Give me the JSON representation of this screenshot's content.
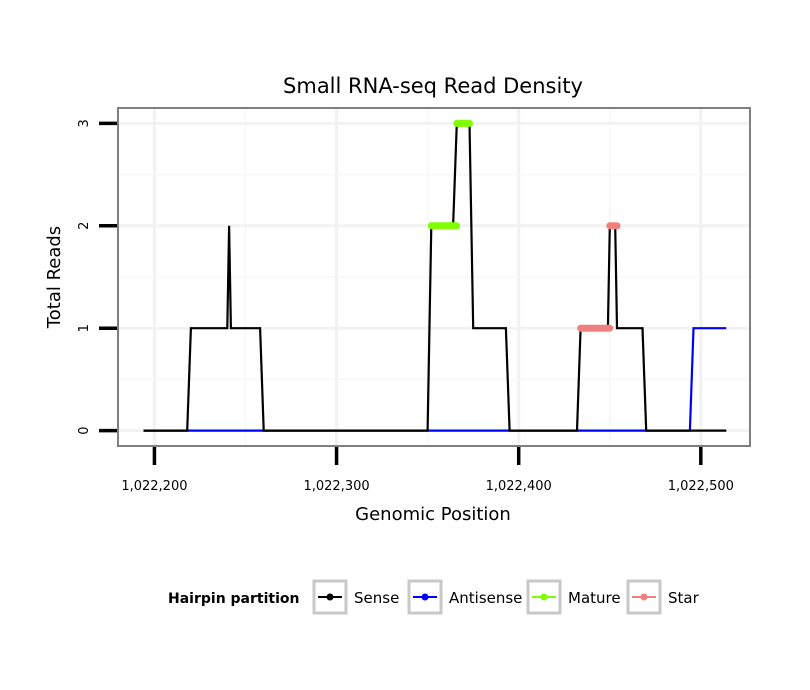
{
  "chart_data": {
    "type": "line",
    "title": "Small RNA-seq Read Density",
    "xlabel": "Genomic Position",
    "ylabel": "Total Reads",
    "xlim": [
      1022180,
      1022527
    ],
    "ylim": [
      -0.15,
      3.15
    ],
    "x_ticks": [
      1022200,
      1022300,
      1022400,
      1022500
    ],
    "x_tick_labels": [
      "1,022,200",
      "1,022,300",
      "1,022,400",
      "1,022,500"
    ],
    "y_ticks": [
      0,
      1,
      2,
      3
    ],
    "y_tick_labels": [
      "0",
      "1",
      "2",
      "3"
    ],
    "grid": true,
    "legend": {
      "title": "Hairpin partition",
      "position": "bottom",
      "entries": [
        "Sense",
        "Antisense",
        "Mature",
        "Star"
      ]
    },
    "series": [
      {
        "name": "Sense",
        "color": "#000000",
        "style": "line",
        "points": [
          [
            1022194,
            0
          ],
          [
            1022218,
            0
          ],
          [
            1022220,
            1
          ],
          [
            1022240,
            1
          ],
          [
            1022241,
            2
          ],
          [
            1022242,
            1
          ],
          [
            1022258,
            1
          ],
          [
            1022260,
            0
          ],
          [
            1022350,
            0
          ],
          [
            1022352,
            2
          ],
          [
            1022364,
            2
          ],
          [
            1022366,
            3
          ],
          [
            1022373,
            3
          ],
          [
            1022375,
            1
          ],
          [
            1022393,
            1
          ],
          [
            1022395,
            0
          ],
          [
            1022432,
            0
          ],
          [
            1022434,
            1
          ],
          [
            1022449,
            1
          ],
          [
            1022450,
            2
          ],
          [
            1022453,
            2
          ],
          [
            1022454,
            1
          ],
          [
            1022468,
            1
          ],
          [
            1022470,
            0
          ],
          [
            1022514,
            0
          ]
        ]
      },
      {
        "name": "Antisense",
        "color": "#0000ff",
        "style": "line",
        "points": [
          [
            1022194,
            0
          ],
          [
            1022494,
            0
          ],
          [
            1022496,
            1
          ],
          [
            1022514,
            1
          ]
        ]
      },
      {
        "name": "Mature",
        "color": "#7fff00",
        "style": "thick",
        "segments": [
          {
            "x": [
              1022352,
              1022366
            ],
            "y": 2
          },
          {
            "x": [
              1022366,
              1022373
            ],
            "y": 3
          }
        ]
      },
      {
        "name": "Star",
        "color": "#f08080",
        "style": "thick",
        "segments": [
          {
            "x": [
              1022434,
              1022450
            ],
            "y": 1
          },
          {
            "x": [
              1022450,
              1022454
            ],
            "y": 2
          }
        ]
      }
    ]
  }
}
